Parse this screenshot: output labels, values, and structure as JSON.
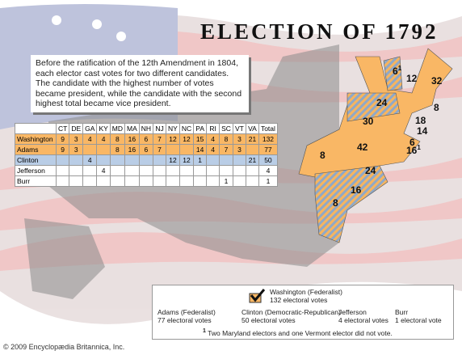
{
  "title": "ELECTION OF 1792",
  "intro": "Before the ratification of the 12th Amendment in 1804, each elector cast votes for two different candidates.  The candidate with the highest number of votes became president, while the candidate with the second highest total became vice president.",
  "table": {
    "header": [
      null,
      "CT",
      "DE",
      "GA",
      "KY",
      "MD",
      "MA",
      "NH",
      "NJ",
      "NY",
      "NC",
      "PA",
      "RI",
      "SC",
      "VT",
      "VA",
      "Total"
    ],
    "rows": [
      [
        "Washington",
        "9",
        "3",
        "4",
        "4",
        "8",
        "16",
        "6",
        "7",
        "12",
        "12",
        "15",
        "4",
        "8",
        "3",
        "21",
        "132"
      ],
      [
        "Adams",
        "9",
        "3",
        null,
        null,
        "8",
        "16",
        "6",
        "7",
        null,
        null,
        "14",
        "4",
        "7",
        "3",
        null,
        "77"
      ],
      [
        "Clinton",
        null,
        null,
        "4",
        null,
        null,
        null,
        null,
        null,
        "12",
        "12",
        "1",
        null,
        null,
        null,
        "21",
        "50"
      ],
      [
        "Jefferson",
        null,
        null,
        null,
        "4",
        null,
        null,
        null,
        null,
        null,
        null,
        null,
        null,
        null,
        null,
        null,
        "4"
      ],
      [
        "Burr",
        null,
        null,
        null,
        null,
        null,
        null,
        null,
        null,
        null,
        null,
        null,
        null,
        "1",
        null,
        null,
        "1"
      ]
    ]
  },
  "map_labels": [
    {
      "text": "6",
      "note": "1"
    },
    {
      "text": "12"
    },
    {
      "text": "32"
    },
    {
      "text": "24"
    },
    {
      "text": "8"
    },
    {
      "text": "18"
    },
    {
      "text": "14"
    },
    {
      "text": "30"
    },
    {
      "text": "6"
    },
    {
      "text": "16",
      "note": "1"
    },
    {
      "text": "8"
    },
    {
      "text": "42"
    },
    {
      "text": "24"
    },
    {
      "text": "16"
    },
    {
      "text": "8"
    }
  ],
  "legend": {
    "winner": {
      "name": "Washington (Federalist)",
      "votes": "132 electoral votes"
    },
    "others": [
      {
        "name": "Adams (Federalist)",
        "votes": "77 electoral votes"
      },
      {
        "name": "Clinton (Democratic-Republican)",
        "votes": "50 electoral votes"
      },
      {
        "name": "Jefferson",
        "votes": "4 electoral votes"
      },
      {
        "name": "Burr",
        "votes": "1 electoral vote"
      }
    ],
    "footnote_mark": "1",
    "footnote": "Two Maryland electors and one Vermont elector did not vote."
  },
  "credit": "© 2009 Encyclopædia Britannica, Inc."
}
